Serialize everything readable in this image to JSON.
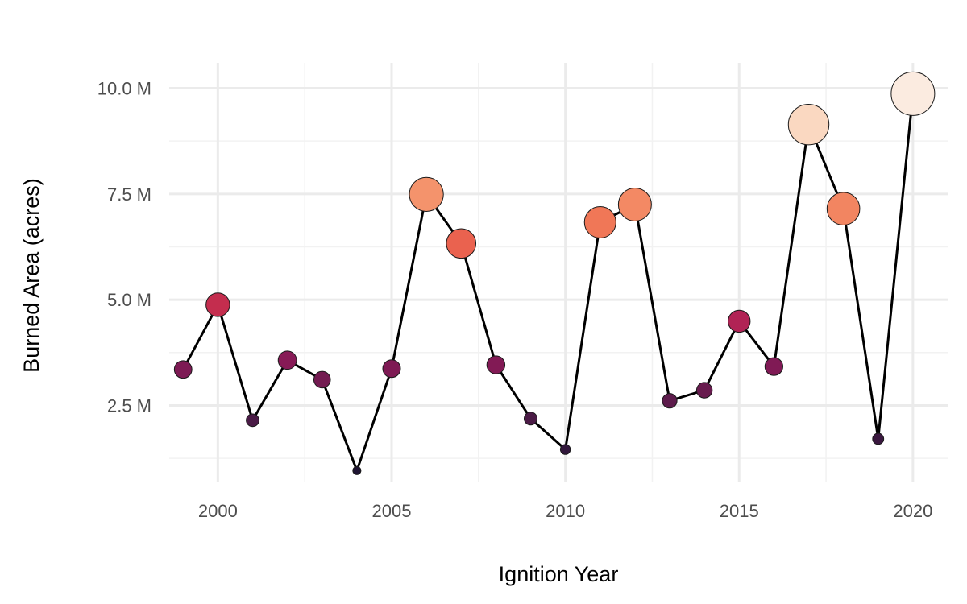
{
  "chart_data": {
    "type": "scatter",
    "title": "",
    "xlabel": "Ignition Year",
    "ylabel": "Burned Area (acres)",
    "xlim": [
      1998.6,
      2021.0
    ],
    "ylim": [
      0.7,
      10.6
    ],
    "x_ticks": [
      {
        "value": 2000,
        "label": "2000"
      },
      {
        "value": 2005,
        "label": "2005"
      },
      {
        "value": 2010,
        "label": "2010"
      },
      {
        "value": 2015,
        "label": "2015"
      },
      {
        "value": 2020,
        "label": "2020"
      }
    ],
    "y_ticks": [
      {
        "value": 2.5,
        "label": "2.5 M"
      },
      {
        "value": 5.0,
        "label": "5.0 M"
      },
      {
        "value": 7.5,
        "label": "7.5 M"
      },
      {
        "value": 10.0,
        "label": "10.0 M"
      }
    ],
    "y_unit": "M",
    "grid": true,
    "connected_line": true,
    "size_and_color_encode_value": true,
    "colors": {
      "low": "#1f1433",
      "mid": "#de3a44",
      "high": "#fbebe0",
      "line": "#000000"
    },
    "x": [
      1999,
      2000,
      2001,
      2002,
      2003,
      2004,
      2005,
      2006,
      2007,
      2008,
      2009,
      2010,
      2011,
      2012,
      2013,
      2014,
      2015,
      2016,
      2017,
      2018,
      2019,
      2020
    ],
    "y": [
      3.35,
      4.88,
      2.15,
      3.57,
      3.11,
      0.96,
      3.37,
      7.49,
      6.33,
      3.46,
      2.19,
      1.46,
      6.83,
      7.25,
      2.61,
      2.86,
      4.49,
      3.42,
      9.14,
      7.15,
      1.71,
      9.87
    ]
  }
}
